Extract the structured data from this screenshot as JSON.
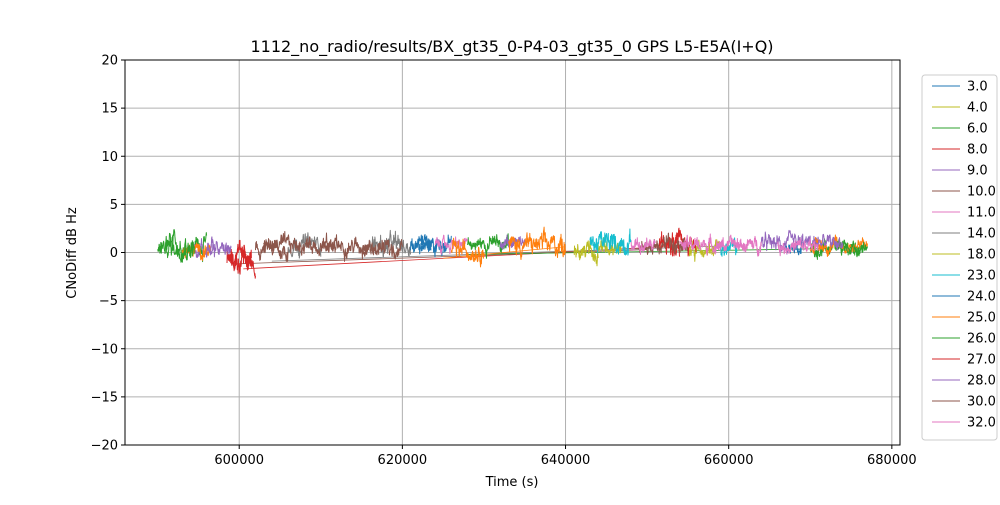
{
  "chart_data": {
    "type": "line",
    "title": "1112_no_radio/results/BX_gt35_0-P4-03_gt35_0 GPS L5-E5A(I+Q)",
    "xlabel": "Time (s)",
    "ylabel": "CNoDiff dB Hz",
    "xlim": [
      586000,
      681000
    ],
    "ylim": [
      -20,
      20
    ],
    "xticks": [
      600000,
      620000,
      640000,
      660000,
      680000
    ],
    "xtick_labels": [
      "600000",
      "620000",
      "640000",
      "660000",
      "680000"
    ],
    "yticks": [
      -20,
      -15,
      -10,
      -5,
      0,
      5,
      10,
      15,
      20
    ],
    "ytick_labels": [
      "−20",
      "−15",
      "−10",
      "−5",
      "0",
      "5",
      "10",
      "15",
      "20"
    ],
    "grid": true,
    "legend_position": "outside-right",
    "series": [
      {
        "name": "3.0",
        "color": "#1f77b4",
        "segments": [
          {
            "x0": 622000,
            "x1": 626000,
            "mean": 0.9,
            "amp": 1.2
          }
        ]
      },
      {
        "name": "4.0",
        "color": "#bcbd22",
        "segments": [
          {
            "x0": 641000,
            "x1": 644000,
            "mean": 0.1,
            "amp": 1.0
          },
          {
            "x0": 655000,
            "x1": 659000,
            "mean": 0.1,
            "amp": 1.0
          }
        ]
      },
      {
        "name": "6.0",
        "color": "#2ca02c",
        "segments": [
          {
            "x0": 591000,
            "x1": 596000,
            "mean": 0.8,
            "amp": 1.1
          },
          {
            "x0": 628000,
            "x1": 633000,
            "mean": 0.9,
            "amp": 0.9
          },
          {
            "x0": 670000,
            "x1": 676500,
            "mean": 0.4,
            "amp": 0.8
          }
        ]
      },
      {
        "name": "8.0",
        "color": "#d62728",
        "segments": [
          {
            "x0": 598500,
            "x1": 602000,
            "mean": -0.9,
            "amp": 1.3
          },
          {
            "x0": 651500,
            "x1": 654000,
            "mean": 0.6,
            "amp": 1.4
          }
        ]
      },
      {
        "name": "9.0",
        "color": "#9467bd",
        "segments": [
          {
            "x0": 594500,
            "x1": 597000,
            "mean": 0.4,
            "amp": 1.0
          },
          {
            "x0": 632000,
            "x1": 635000,
            "mean": 1.1,
            "amp": 0.8
          },
          {
            "x0": 664000,
            "x1": 671000,
            "mean": 0.9,
            "amp": 0.9
          }
        ]
      },
      {
        "name": "10.0",
        "color": "#8c564b",
        "segments": [
          {
            "x0": 602000,
            "x1": 606000,
            "mean": 0.2,
            "amp": 1.0
          },
          {
            "x0": 610000,
            "x1": 616000,
            "mean": 0.7,
            "amp": 0.9
          },
          {
            "x0": 649000,
            "x1": 652000,
            "mean": 0.6,
            "amp": 0.8
          }
        ]
      },
      {
        "name": "11.0",
        "color": "#e377c2",
        "segments": [
          {
            "x0": 624000,
            "x1": 628000,
            "mean": 0.8,
            "amp": 0.7
          },
          {
            "x0": 648000,
            "x1": 651000,
            "mean": 0.9,
            "amp": 0.8
          }
        ]
      },
      {
        "name": "14.0",
        "color": "#7f7f7f",
        "segments": [
          {
            "x0": 606000,
            "x1": 610000,
            "mean": 0.9,
            "amp": 1.0
          },
          {
            "x0": 616000,
            "x1": 621000,
            "mean": 0.7,
            "amp": 1.2
          }
        ]
      },
      {
        "name": "18.0",
        "color": "#bcbd22",
        "segments": [
          {
            "x0": 644000,
            "x1": 647000,
            "mean": 0.7,
            "amp": 0.9
          }
        ]
      },
      {
        "name": "23.0",
        "color": "#17becf",
        "segments": [
          {
            "x0": 643000,
            "x1": 648000,
            "mean": 1.0,
            "amp": 1.2
          },
          {
            "x0": 659000,
            "x1": 661000,
            "mean": 0.4,
            "amp": 0.9
          }
        ]
      },
      {
        "name": "24.0",
        "color": "#1f77b4",
        "segments": [
          {
            "x0": 621000,
            "x1": 623500,
            "mean": 0.6,
            "amp": 1.0
          },
          {
            "x0": 667000,
            "x1": 669000,
            "mean": 0.5,
            "amp": 0.7
          }
        ]
      },
      {
        "name": "25.0",
        "color": "#ff7f0e",
        "segments": [
          {
            "x0": 593000,
            "x1": 596500,
            "mean": 0.2,
            "amp": 0.8
          },
          {
            "x0": 626000,
            "x1": 630000,
            "mean": 0.2,
            "amp": 1.0
          },
          {
            "x0": 633000,
            "x1": 640000,
            "mean": 0.8,
            "amp": 1.2
          },
          {
            "x0": 670000,
            "x1": 677000,
            "mean": 0.7,
            "amp": 0.8
          }
        ]
      },
      {
        "name": "26.0",
        "color": "#2ca02c",
        "segments": [
          {
            "x0": 590000,
            "x1": 594500,
            "mean": 0.5,
            "amp": 1.1
          },
          {
            "x0": 673000,
            "x1": 677000,
            "mean": 0.6,
            "amp": 0.7
          }
        ]
      },
      {
        "name": "27.0",
        "color": "#d62728",
        "segments": [
          {
            "x0": 599000,
            "x1": 601500,
            "mean": -0.5,
            "amp": 1.2
          },
          {
            "x0": 653000,
            "x1": 656000,
            "mean": 1.0,
            "amp": 1.1
          }
        ]
      },
      {
        "name": "28.0",
        "color": "#9467bd",
        "segments": [
          {
            "x0": 596000,
            "x1": 599000,
            "mean": 0.3,
            "amp": 0.9
          },
          {
            "x0": 670500,
            "x1": 674000,
            "mean": 1.0,
            "amp": 0.9
          }
        ]
      },
      {
        "name": "30.0",
        "color": "#8c564b",
        "segments": [
          {
            "x0": 603000,
            "x1": 612000,
            "mean": 0.8,
            "amp": 0.9
          },
          {
            "x0": 615000,
            "x1": 620000,
            "mean": 0.4,
            "amp": 1.0
          },
          {
            "x0": 652000,
            "x1": 655000,
            "mean": 1.2,
            "amp": 0.9
          }
        ]
      },
      {
        "name": "32.0",
        "color": "#e377c2",
        "segments": [
          {
            "x0": 654000,
            "x1": 664000,
            "mean": 0.8,
            "amp": 0.8
          },
          {
            "x0": 666000,
            "x1": 671000,
            "mean": 0.6,
            "amp": 0.8
          }
        ]
      }
    ],
    "connector_lines": [
      {
        "color": "#d62728",
        "x0": 600500,
        "y0": -1.7,
        "x1": 652000,
        "y1": 0.6
      },
      {
        "color": "#8c564b",
        "x0": 599000,
        "y0": -1.2,
        "x1": 650000,
        "y1": 0.3
      },
      {
        "color": "#7f7f7f",
        "x0": 604000,
        "y0": -0.9,
        "x1": 660000,
        "y1": 0.7
      },
      {
        "color": "#2ca02c",
        "x0": 628000,
        "y0": -0.2,
        "x1": 672000,
        "y1": 0.4
      },
      {
        "color": "#ff7f0e",
        "x0": 625000,
        "y0": -0.6,
        "x1": 640000,
        "y1": 0.6
      }
    ]
  }
}
